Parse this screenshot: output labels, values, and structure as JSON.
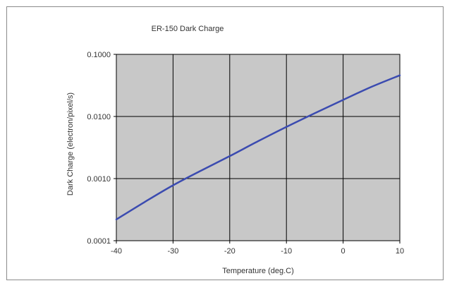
{
  "chart_data": {
    "type": "line",
    "title": "ER-150 Dark Charge",
    "xlabel": "Temperature (deg.C)",
    "ylabel": "Dark Charge (electron/pixel/s)",
    "xlim": [
      -40,
      10
    ],
    "ylim": [
      0.0001,
      0.1
    ],
    "yscale": "log",
    "grid": true,
    "x_ticks": [
      -40,
      -30,
      -20,
      -10,
      0,
      10
    ],
    "x_tick_labels": [
      "-40",
      "-30",
      "-20",
      "-10",
      "0",
      "10"
    ],
    "y_ticks": [
      0.0001,
      0.001,
      0.01,
      0.1
    ],
    "y_tick_labels": [
      "0.0001",
      "0.0010",
      "0.0100",
      "0.1000"
    ],
    "plot_background": "#c8c8c8",
    "line_color": "#3b4bb0",
    "grid_color": "#000000",
    "series": [
      {
        "x": [
          -40,
          -35,
          -30,
          -25,
          -20,
          -15,
          -10,
          -5,
          0,
          5,
          10
        ],
        "y": [
          0.00022,
          0.00042,
          0.00078,
          0.00135,
          0.0023,
          0.004,
          0.0068,
          0.0113,
          0.0185,
          0.03,
          0.046
        ]
      }
    ]
  }
}
